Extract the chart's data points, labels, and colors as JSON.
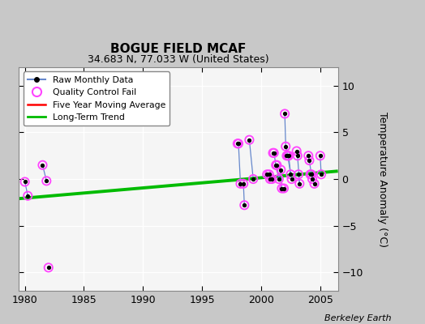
{
  "title": "BOGUE FIELD MCAF",
  "subtitle": "34.683 N, 77.033 W (United States)",
  "ylabel": "Temperature Anomaly (°C)",
  "xlabel_credit": "Berkeley Earth",
  "xlim": [
    1979.5,
    2006.5
  ],
  "ylim": [
    -12,
    12
  ],
  "yticks": [
    -10,
    -5,
    0,
    5,
    10
  ],
  "xticks": [
    1980,
    1985,
    1990,
    1995,
    2000,
    2005
  ],
  "fig_bg_color": "#c8c8c8",
  "plot_bg_color": "#f5f5f5",
  "grid_color": "#ffffff",
  "raw_segments": [
    {
      "x": [
        1980.0,
        1980.25
      ],
      "y": [
        -0.3,
        -1.8
      ]
    },
    {
      "x": [
        1981.5,
        1981.83
      ],
      "y": [
        1.5,
        -0.2
      ]
    },
    {
      "x": [
        1998.0,
        1998.08,
        1998.25,
        1998.5,
        1998.58
      ],
      "y": [
        3.8,
        3.8,
        -0.5,
        -0.5,
        -2.8
      ]
    },
    {
      "x": [
        1999.0,
        1999.33
      ],
      "y": [
        4.2,
        0.0
      ]
    },
    {
      "x": [
        2000.5,
        2000.67,
        2000.75,
        2000.92
      ],
      "y": [
        0.5,
        0.5,
        0.0,
        0.0
      ]
    },
    {
      "x": [
        2001.0,
        2001.08,
        2001.25,
        2001.5,
        2001.67,
        2001.75,
        2001.92
      ],
      "y": [
        2.8,
        2.8,
        1.5,
        0.0,
        1.0,
        -1.0,
        -1.0
      ]
    },
    {
      "x": [
        2001.33,
        2001.5
      ],
      "y": [
        1.5,
        0.0
      ]
    },
    {
      "x": [
        2002.0,
        2002.08,
        2002.25,
        2002.5,
        2002.58
      ],
      "y": [
        7.0,
        3.5,
        2.5,
        0.5,
        0.0
      ]
    },
    {
      "x": [
        2002.16,
        2002.25
      ],
      "y": [
        2.5,
        2.5
      ]
    },
    {
      "x": [
        2002.33,
        2002.5
      ],
      "y": [
        2.5,
        0.5
      ]
    },
    {
      "x": [
        2003.0,
        2003.08,
        2003.25
      ],
      "y": [
        3.0,
        2.5,
        -0.5
      ]
    },
    {
      "x": [
        2003.16,
        2003.25
      ],
      "y": [
        0.5,
        -0.5
      ]
    },
    {
      "x": [
        2004.0,
        2004.08,
        2004.25,
        2004.5
      ],
      "y": [
        2.5,
        2.0,
        0.5,
        -0.5
      ]
    },
    {
      "x": [
        2004.16,
        2004.25
      ],
      "y": [
        0.5,
        0.5
      ]
    },
    {
      "x": [
        2005.0,
        2005.08
      ],
      "y": [
        2.5,
        0.5
      ]
    }
  ],
  "all_points_x": [
    1980.0,
    1980.25,
    1981.5,
    1981.83,
    1982.0,
    1998.0,
    1998.08,
    1998.25,
    1998.5,
    1998.58,
    1999.0,
    1999.33,
    2000.5,
    2000.67,
    2000.75,
    2000.92,
    2001.0,
    2001.08,
    2001.25,
    2001.33,
    2001.5,
    2001.67,
    2001.75,
    2001.92,
    2002.0,
    2002.08,
    2002.16,
    2002.25,
    2002.33,
    2002.5,
    2002.58,
    2003.0,
    2003.08,
    2003.16,
    2003.25,
    2004.0,
    2004.08,
    2004.16,
    2004.25,
    2004.33,
    2004.5,
    2005.0,
    2005.08
  ],
  "all_points_y": [
    -0.3,
    -1.8,
    1.5,
    -0.2,
    -9.5,
    3.8,
    3.8,
    -0.5,
    -0.5,
    -2.8,
    4.2,
    0.0,
    0.5,
    0.5,
    0.0,
    0.0,
    2.8,
    2.8,
    1.5,
    1.5,
    0.0,
    1.0,
    -1.0,
    -1.0,
    7.0,
    3.5,
    2.5,
    2.5,
    2.5,
    0.5,
    0.0,
    3.0,
    2.5,
    0.5,
    -0.5,
    2.5,
    2.0,
    0.5,
    0.5,
    0.0,
    -0.5,
    2.5,
    0.5
  ],
  "trend_x": [
    1979.5,
    2006.5
  ],
  "trend_y": [
    -2.1,
    0.85
  ],
  "raw_line_color": "#6688cc",
  "raw_marker_color": "#000000",
  "qc_color": "#ff44ff",
  "trend_color": "#00bb00",
  "moving_avg_color": "#ff0000"
}
